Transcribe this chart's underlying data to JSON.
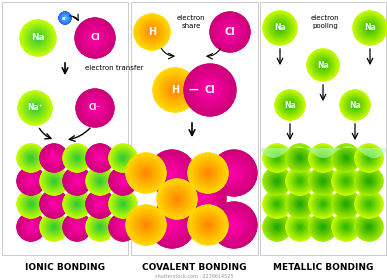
{
  "title_ionic": "IONIC BONDING",
  "title_covalent": "COVALENT BONDING",
  "title_metallic": "METALLIC BONDING",
  "na_inner": "#33cc33",
  "na_outer": "#ccff00",
  "cl_inner": "#ff00aa",
  "cl_outer": "#cc0077",
  "h_inner": "#ff8800",
  "h_outer": "#ffdd00",
  "hcl_cl_inner": "#ff00aa",
  "hcl_cl_outer": "#cc0077",
  "met_inner": "#33bb00",
  "met_outer": "#ccff00",
  "met_inner2": "#22aa00",
  "met_outer2": "#aaee00",
  "electron_inner": "#55bbff",
  "electron_outer": "#2266ff",
  "background": "#ffffff",
  "border_color": "#cccccc",
  "watermark": "shutterstock.com · 2239614525"
}
